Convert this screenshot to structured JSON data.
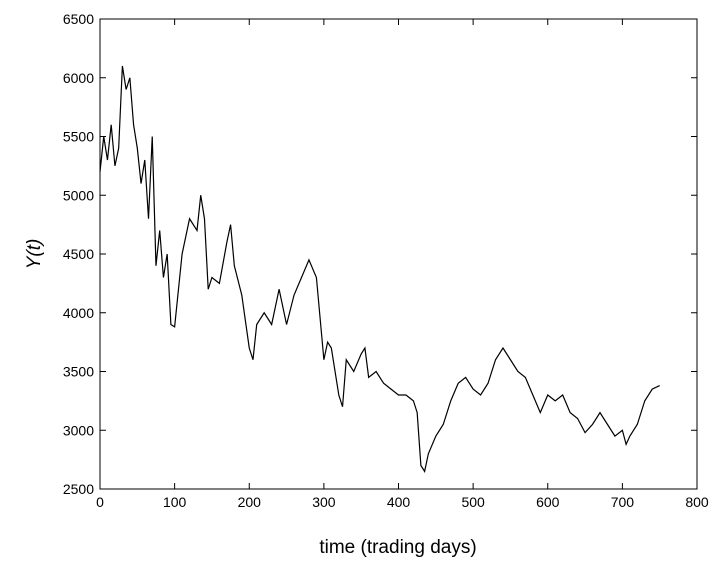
{
  "chart_data": {
    "type": "line",
    "xlabel": "time (trading days)",
    "ylabel": "Y(t)",
    "xlim": [
      0,
      800
    ],
    "xticks": [
      0,
      100,
      200,
      300,
      400,
      500,
      600,
      700,
      800
    ],
    "ylim": [
      2500,
      6500
    ],
    "yticks": [
      2500,
      3000,
      3500,
      4000,
      4500,
      5000,
      5500,
      6000,
      6500
    ],
    "series": [
      {
        "color": "#000000",
        "x": [
          0,
          5,
          10,
          15,
          20,
          25,
          30,
          35,
          40,
          45,
          50,
          55,
          60,
          65,
          70,
          75,
          80,
          85,
          90,
          95,
          100,
          110,
          120,
          130,
          135,
          140,
          145,
          150,
          160,
          170,
          175,
          180,
          190,
          200,
          205,
          210,
          220,
          230,
          240,
          250,
          260,
          270,
          280,
          290,
          300,
          305,
          310,
          320,
          325,
          330,
          340,
          350,
          355,
          360,
          370,
          380,
          390,
          400,
          410,
          420,
          425,
          430,
          435,
          440,
          450,
          460,
          470,
          480,
          490,
          500,
          510,
          520,
          530,
          540,
          545,
          550,
          560,
          570,
          580,
          590,
          600,
          610,
          620,
          630,
          640,
          650,
          660,
          670,
          680,
          690,
          700,
          705,
          710,
          720,
          730,
          740,
          750
        ],
        "values": [
          5200,
          5500,
          5300,
          5600,
          5250,
          5400,
          6100,
          5900,
          6000,
          5600,
          5400,
          5100,
          5300,
          4800,
          5500,
          4400,
          4700,
          4300,
          4500,
          3900,
          3880,
          4500,
          4800,
          4700,
          5000,
          4800,
          4200,
          4300,
          4250,
          4600,
          4750,
          4400,
          4150,
          3700,
          3600,
          3900,
          4000,
          3900,
          4200,
          3900,
          4150,
          4300,
          4450,
          4300,
          3600,
          3750,
          3700,
          3300,
          3200,
          3600,
          3500,
          3650,
          3700,
          3450,
          3500,
          3400,
          3350,
          3300,
          3300,
          3250,
          3150,
          2700,
          2650,
          2800,
          2950,
          3050,
          3250,
          3400,
          3450,
          3350,
          3300,
          3400,
          3600,
          3700,
          3650,
          3600,
          3500,
          3450,
          3300,
          3150,
          3300,
          3250,
          3300,
          3150,
          3100,
          2980,
          3050,
          3150,
          3050,
          2950,
          3000,
          2880,
          2950,
          3050,
          3250,
          3350,
          3380
        ]
      }
    ]
  }
}
